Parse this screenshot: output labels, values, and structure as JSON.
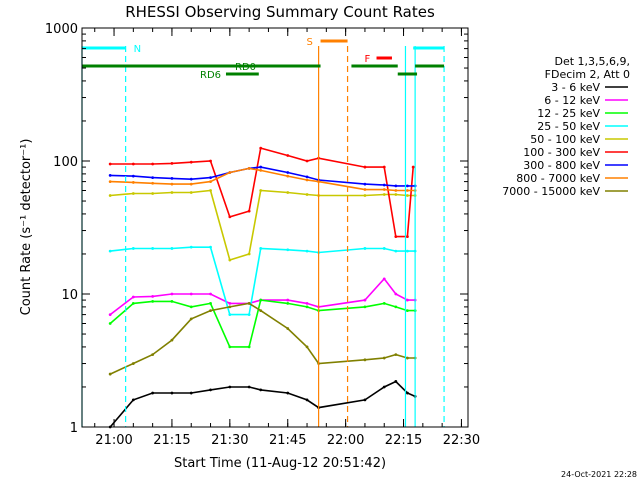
{
  "chart_data": {
    "type": "line",
    "title": "RHESSI Observing Summary Count Rates",
    "ylabel": "Count Rate (s⁻¹ detector⁻¹)",
    "xlabel": "Start Time (11-Aug-12 20:51:42)",
    "y_scale": "log",
    "ylim": [
      1,
      1000
    ],
    "y_ticks": [
      1,
      10,
      100,
      1000
    ],
    "y_tick_labels": [
      "1",
      "10",
      "100",
      "1000"
    ],
    "x_range": [
      "20:51:42",
      "22:31:42"
    ],
    "x_tick_labels": [
      "21:00",
      "21:15",
      "21:30",
      "21:45",
      "22:00",
      "22:15",
      "22:30"
    ],
    "x_ticks": [
      "21:00",
      "21:15",
      "21:30",
      "21:45",
      "22:00",
      "22:15",
      "22:30"
    ],
    "timestamp": "24-Oct-2021 22:28",
    "legend": {
      "placement": "right",
      "header_lines": [
        "Det 1,3,5,6,9,",
        "FDecim 2, Att 0"
      ],
      "entries": [
        {
          "label": "3 - 6 keV",
          "color": "#000000"
        },
        {
          "label": "6 - 12 keV",
          "color": "#ff00ff"
        },
        {
          "label": "12 - 25 keV",
          "color": "#00ff00"
        },
        {
          "label": "25 - 50 keV",
          "color": "#00ffff"
        },
        {
          "label": "50 - 100 keV",
          "color": "#c8c800"
        },
        {
          "label": "100 - 300 keV",
          "color": "#ff0000"
        },
        {
          "label": "300 - 800 keV",
          "color": "#0000ff"
        },
        {
          "label": "800 - 7000 keV",
          "color": "#ff8000"
        },
        {
          "label": "7000 - 15000 keV",
          "color": "#808000"
        }
      ]
    },
    "flags": [
      {
        "label": "N",
        "color": "#00ffff",
        "spans": [
          [
            "20:51:42",
            "21:03:00"
          ],
          [
            "22:17:30",
            "22:25:30"
          ]
        ]
      },
      {
        "label": "RD0",
        "color": "#008000",
        "spans": [
          [
            "20:51:42",
            "21:53:30"
          ],
          [
            "22:01:30",
            "22:13:30"
          ],
          [
            "22:18:00",
            "22:25:30"
          ]
        ]
      },
      {
        "label": "RD6",
        "color": "#008000",
        "spans": [
          [
            "21:29:00",
            "21:37:30"
          ],
          [
            "22:13:30",
            "22:18:30"
          ]
        ]
      },
      {
        "label": "S",
        "color": "#ff8000",
        "spans": [
          [
            "21:53:30",
            "22:00:30"
          ]
        ]
      },
      {
        "label": "F",
        "color": "#ff0000",
        "spans": [
          [
            "22:08:00",
            "22:12:00"
          ]
        ]
      }
    ],
    "vertical_markers": [
      {
        "time": "20:51:42",
        "color": "#00ffff",
        "style": "solid"
      },
      {
        "time": "21:03:00",
        "color": "#00ffff",
        "style": "dashed"
      },
      {
        "time": "21:53:00",
        "color": "#ff8000",
        "style": "solid"
      },
      {
        "time": "22:00:30",
        "color": "#ff8000",
        "style": "dashed"
      },
      {
        "time": "22:15:30",
        "color": "#00ffff",
        "style": "solid"
      },
      {
        "time": "22:18:00",
        "color": "#00ffff",
        "style": "solid"
      },
      {
        "time": "22:25:30",
        "color": "#00ffff",
        "style": "dashed"
      }
    ],
    "series": [
      {
        "name": "3 - 6 keV",
        "color": "#000000",
        "points": [
          [
            "20:59:00",
            1.0
          ],
          [
            "21:05:00",
            1.6
          ],
          [
            "21:10:00",
            1.8
          ],
          [
            "21:15:00",
            1.8
          ],
          [
            "21:20:00",
            1.8
          ],
          [
            "21:25:00",
            1.9
          ],
          [
            "21:30:00",
            2.0
          ],
          [
            "21:35:00",
            2.0
          ],
          [
            "21:38:00",
            1.9
          ],
          [
            "21:45:00",
            1.8
          ],
          [
            "21:50:00",
            1.6
          ],
          [
            "21:53:00",
            1.4
          ],
          [
            "22:05:00",
            1.6
          ],
          [
            "22:10:00",
            2.0
          ],
          [
            "22:13:00",
            2.2
          ],
          [
            "22:16:00",
            1.8
          ],
          [
            "22:18:00",
            1.7
          ]
        ]
      },
      {
        "name": "6 - 12 keV",
        "color": "#ff00ff",
        "points": [
          [
            "20:59:00",
            7.0
          ],
          [
            "21:05:00",
            9.5
          ],
          [
            "21:10:00",
            9.6
          ],
          [
            "21:15:00",
            10.0
          ],
          [
            "21:20:00",
            10.0
          ],
          [
            "21:25:00",
            10.0
          ],
          [
            "21:30:00",
            8.5
          ],
          [
            "21:35:00",
            8.5
          ],
          [
            "21:38:00",
            9.0
          ],
          [
            "21:45:00",
            9.0
          ],
          [
            "21:50:00",
            8.5
          ],
          [
            "21:53:00",
            8.0
          ],
          [
            "22:05:00",
            9.0
          ],
          [
            "22:10:00",
            13.0
          ],
          [
            "22:13:00",
            10.0
          ],
          [
            "22:16:00",
            9.0
          ],
          [
            "22:18:00",
            9.0
          ]
        ]
      },
      {
        "name": "12 - 25 keV",
        "color": "#00ff00",
        "points": [
          [
            "20:59:00",
            6.0
          ],
          [
            "21:05:00",
            8.5
          ],
          [
            "21:10:00",
            8.8
          ],
          [
            "21:15:00",
            8.8
          ],
          [
            "21:20:00",
            8.0
          ],
          [
            "21:25:00",
            8.5
          ],
          [
            "21:30:00",
            4.0
          ],
          [
            "21:35:00",
            4.0
          ],
          [
            "21:38:00",
            9.0
          ],
          [
            "21:45:00",
            8.5
          ],
          [
            "21:50:00",
            8.0
          ],
          [
            "21:53:00",
            7.5
          ],
          [
            "22:05:00",
            8.0
          ],
          [
            "22:10:00",
            8.5
          ],
          [
            "22:13:00",
            8.0
          ],
          [
            "22:16:00",
            7.5
          ],
          [
            "22:18:00",
            7.5
          ]
        ]
      },
      {
        "name": "25 - 50 keV",
        "color": "#00ffff",
        "points": [
          [
            "20:59:00",
            21.0
          ],
          [
            "21:05:00",
            22.0
          ],
          [
            "21:10:00",
            22.0
          ],
          [
            "21:15:00",
            22.0
          ],
          [
            "21:20:00",
            22.5
          ],
          [
            "21:25:00",
            22.5
          ],
          [
            "21:30:00",
            7.0
          ],
          [
            "21:35:00",
            7.0
          ],
          [
            "21:38:00",
            22.0
          ],
          [
            "21:45:00",
            21.5
          ],
          [
            "21:50:00",
            21.0
          ],
          [
            "21:53:00",
            20.5
          ],
          [
            "22:05:00",
            22.0
          ],
          [
            "22:10:00",
            22.0
          ],
          [
            "22:13:00",
            21.0
          ],
          [
            "22:16:00",
            21.0
          ],
          [
            "22:18:00",
            21.0
          ]
        ]
      },
      {
        "name": "50 - 100 keV",
        "color": "#c8c800",
        "points": [
          [
            "20:59:00",
            55.0
          ],
          [
            "21:05:00",
            57.0
          ],
          [
            "21:10:00",
            57.0
          ],
          [
            "21:15:00",
            58.0
          ],
          [
            "21:20:00",
            58.0
          ],
          [
            "21:25:00",
            60.0
          ],
          [
            "21:30:00",
            18.0
          ],
          [
            "21:35:00",
            20.0
          ],
          [
            "21:38:00",
            60.0
          ],
          [
            "21:45:00",
            58.0
          ],
          [
            "21:50:00",
            56.0
          ],
          [
            "21:53:00",
            55.0
          ],
          [
            "22:05:00",
            55.0
          ],
          [
            "22:10:00",
            56.0
          ],
          [
            "22:13:00",
            56.0
          ],
          [
            "22:16:00",
            55.0
          ],
          [
            "22:18:00",
            55.0
          ]
        ]
      },
      {
        "name": "100 - 300 keV",
        "color": "#ff0000",
        "points": [
          [
            "20:59:00",
            95.0
          ],
          [
            "21:05:00",
            95.0
          ],
          [
            "21:10:00",
            95.0
          ],
          [
            "21:15:00",
            96.0
          ],
          [
            "21:20:00",
            98.0
          ],
          [
            "21:25:00",
            100.0
          ],
          [
            "21:30:00",
            38.0
          ],
          [
            "21:35:00",
            42.0
          ],
          [
            "21:38:00",
            125.0
          ],
          [
            "21:45:00",
            110.0
          ],
          [
            "21:50:00",
            100.0
          ],
          [
            "21:53:00",
            105.0
          ],
          [
            "22:05:00",
            90.0
          ],
          [
            "22:10:00",
            90.0
          ],
          [
            "22:13:00",
            27.0
          ],
          [
            "22:16:00",
            27.0
          ],
          [
            "22:17:30",
            90.0
          ]
        ]
      },
      {
        "name": "300 - 800 keV",
        "color": "#0000ff",
        "points": [
          [
            "20:59:00",
            78.0
          ],
          [
            "21:05:00",
            77.0
          ],
          [
            "21:10:00",
            75.0
          ],
          [
            "21:15:00",
            74.0
          ],
          [
            "21:20:00",
            73.0
          ],
          [
            "21:25:00",
            75.0
          ],
          [
            "21:30:00",
            82.0
          ],
          [
            "21:35:00",
            88.0
          ],
          [
            "21:38:00",
            90.0
          ],
          [
            "21:45:00",
            82.0
          ],
          [
            "21:50:00",
            76.0
          ],
          [
            "21:53:00",
            72.0
          ],
          [
            "22:05:00",
            67.0
          ],
          [
            "22:10:00",
            66.0
          ],
          [
            "22:13:00",
            65.0
          ],
          [
            "22:16:00",
            65.0
          ],
          [
            "22:18:00",
            65.0
          ]
        ]
      },
      {
        "name": "800 - 7000 keV",
        "color": "#ff8000",
        "points": [
          [
            "20:59:00",
            70.0
          ],
          [
            "21:05:00",
            69.0
          ],
          [
            "21:10:00",
            68.0
          ],
          [
            "21:15:00",
            67.0
          ],
          [
            "21:20:00",
            67.0
          ],
          [
            "21:25:00",
            70.0
          ],
          [
            "21:30:00",
            82.0
          ],
          [
            "21:35:00",
            88.0
          ],
          [
            "21:38:00",
            85.0
          ],
          [
            "21:45:00",
            77.0
          ],
          [
            "21:50:00",
            72.0
          ],
          [
            "21:53:00",
            70.0
          ],
          [
            "22:05:00",
            61.0
          ],
          [
            "22:10:00",
            61.0
          ],
          [
            "22:13:00",
            60.0
          ],
          [
            "22:16:00",
            60.0
          ],
          [
            "22:18:00",
            60.0
          ]
        ]
      },
      {
        "name": "7000 - 15000 keV",
        "color": "#808000",
        "points": [
          [
            "20:59:00",
            2.5
          ],
          [
            "21:05:00",
            3.0
          ],
          [
            "21:10:00",
            3.5
          ],
          [
            "21:15:00",
            4.5
          ],
          [
            "21:20:00",
            6.5
          ],
          [
            "21:25:00",
            7.5
          ],
          [
            "21:30:00",
            8.0
          ],
          [
            "21:35:00",
            8.5
          ],
          [
            "21:38:00",
            7.5
          ],
          [
            "21:45:00",
            5.5
          ],
          [
            "21:50:00",
            4.0
          ],
          [
            "21:53:00",
            3.0
          ],
          [
            "22:05:00",
            3.2
          ],
          [
            "22:10:00",
            3.3
          ],
          [
            "22:13:00",
            3.5
          ],
          [
            "22:16:00",
            3.3
          ],
          [
            "22:18:00",
            3.3
          ]
        ]
      }
    ]
  }
}
